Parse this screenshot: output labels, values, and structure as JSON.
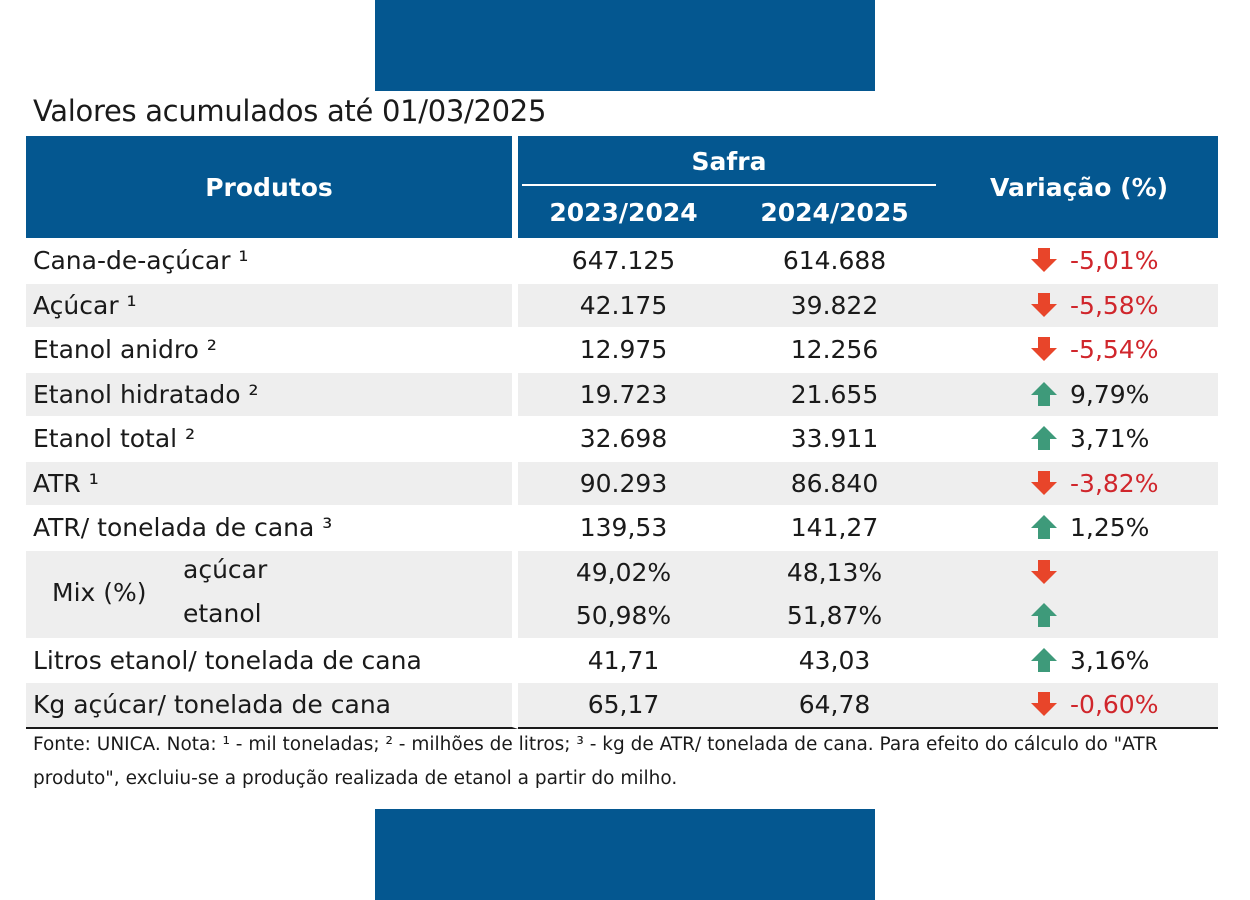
{
  "subtitle": "Valores acumulados até 01/03/2025",
  "colors": {
    "header_bg": "#045790",
    "negative": "#d0262c",
    "down_arrow": "#e8452a",
    "up_arrow": "#3e9a7a",
    "row_alt": "#eeeeee"
  },
  "table": {
    "headers": {
      "produtos": "Produtos",
      "safra": "Safra",
      "year1": "2023/2024",
      "year2": "2024/2025",
      "variacao": "Variação (%)"
    },
    "rows": [
      {
        "name": "Cana-de-açúcar ¹",
        "v1": "647.125",
        "v2": "614.688",
        "dir": "down",
        "icon": "arrow-down-icon",
        "pct": "-5,01%"
      },
      {
        "name": "Açúcar ¹",
        "v1": "42.175",
        "v2": "39.822",
        "dir": "down",
        "icon": "arrow-down-icon",
        "pct": "-5,58%"
      },
      {
        "name": "Etanol anidro ²",
        "v1": "12.975",
        "v2": "12.256",
        "dir": "down",
        "icon": "arrow-down-icon",
        "pct": "-5,54%"
      },
      {
        "name": "Etanol hidratado ²",
        "v1": "19.723",
        "v2": "21.655",
        "dir": "up",
        "icon": "arrow-up-icon",
        "pct": "9,79%"
      },
      {
        "name": "Etanol total ²",
        "v1": "32.698",
        "v2": "33.911",
        "dir": "up",
        "icon": "arrow-up-icon",
        "pct": "3,71%"
      },
      {
        "name": "ATR ¹",
        "v1": "90.293",
        "v2": "86.840",
        "dir": "down",
        "icon": "arrow-down-icon",
        "pct": "-3,82%"
      },
      {
        "name": "ATR/ tonelada de cana ³",
        "v1": "139,53",
        "v2": "141,27",
        "dir": "up",
        "icon": "arrow-up-icon",
        "pct": "1,25%"
      }
    ],
    "mix": {
      "label": "Mix (%)",
      "acucar": {
        "label": "açúcar",
        "v1": "49,02%",
        "v2": "48,13%",
        "dir": "down",
        "icon": "arrow-down-icon"
      },
      "etanol": {
        "label": "etanol",
        "v1": "50,98%",
        "v2": "51,87%",
        "dir": "up",
        "icon": "arrow-up-icon"
      }
    },
    "rows_after": [
      {
        "name": "Litros etanol/ tonelada de cana",
        "v1": "41,71",
        "v2": "43,03",
        "dir": "up",
        "icon": "arrow-up-icon",
        "pct": "3,16%"
      },
      {
        "name": "Kg açúcar/ tonelada de cana",
        "v1": "65,17",
        "v2": "64,78",
        "dir": "down",
        "icon": "arrow-down-icon",
        "pct": "-0,60%"
      }
    ]
  },
  "fonte": "Fonte: UNICA. Nota: ¹ - mil toneladas; ² - milhões de litros; ³ - kg de ATR/ tonelada de cana. Para efeito do cálculo do \"ATR produto\", excluiu-se a produção realizada de etanol a partir do milho."
}
